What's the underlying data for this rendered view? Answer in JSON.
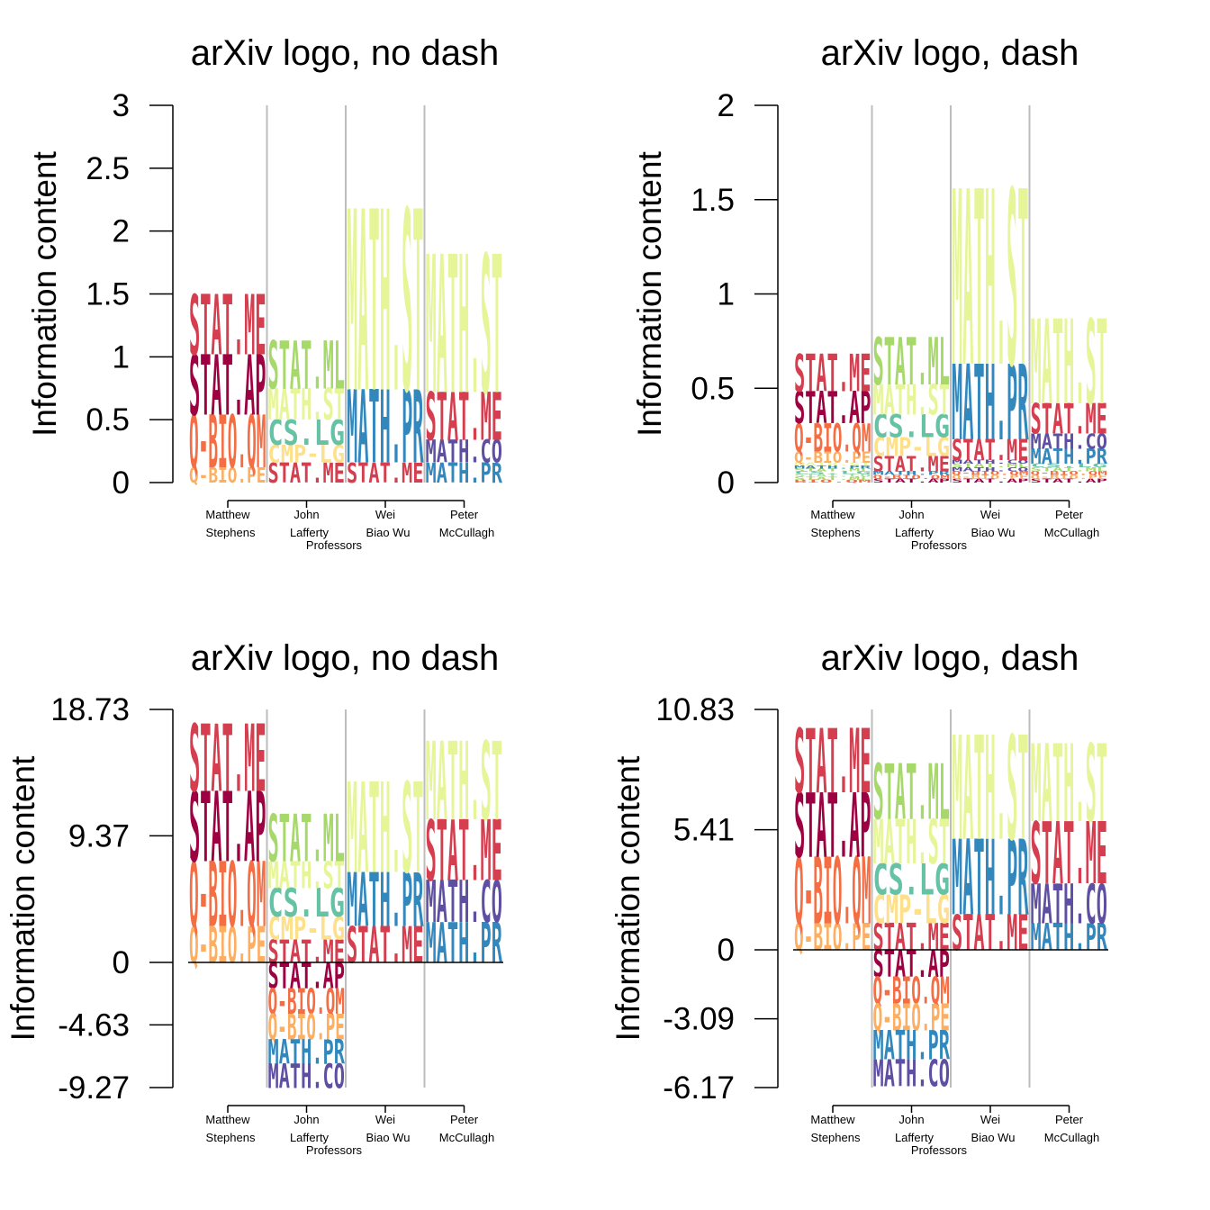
{
  "chart_data": [
    {
      "type": "stacked-logo",
      "title": "arXiv logo, no dash",
      "ylabel": "Information content",
      "xlabel": "Professors",
      "ylim": [
        0,
        3
      ],
      "yticks": [
        "0",
        "0.5",
        "1",
        "1.5",
        "2",
        "2.5",
        "3"
      ],
      "categories": [
        [
          "Matthew",
          "Stephens"
        ],
        [
          "John",
          "Lafferty"
        ],
        [
          "Wei",
          "Biao Wu"
        ],
        [
          "Peter",
          "McCullagh"
        ]
      ],
      "columns": [
        [
          {
            "label": "Q-BIO.PE",
            "value": 0.12
          },
          {
            "label": "Q-BIO.QM",
            "value": 0.42
          },
          {
            "label": "STAT.AP",
            "value": 0.48
          },
          {
            "label": "STAT.ME",
            "value": 0.48
          }
        ],
        [
          {
            "label": "STAT.ME",
            "value": 0.16
          },
          {
            "label": "CMP-LG",
            "value": 0.14
          },
          {
            "label": "CS.LG",
            "value": 0.2
          },
          {
            "label": "MATH.ST",
            "value": 0.25
          },
          {
            "label": "STAT.ML",
            "value": 0.38
          }
        ],
        [
          {
            "label": "STAT.ME",
            "value": 0.16
          },
          {
            "label": "MATH.PR",
            "value": 0.58
          },
          {
            "label": "MATH.ST",
            "value": 1.44
          }
        ],
        [
          {
            "label": "MATH.PR",
            "value": 0.16
          },
          {
            "label": "MATH.CO",
            "value": 0.18
          },
          {
            "label": "STAT.ME",
            "value": 0.38
          },
          {
            "label": "MATH.ST",
            "value": 1.1
          }
        ]
      ],
      "negative": []
    },
    {
      "type": "stacked-logo",
      "title": "arXiv logo, dash",
      "ylabel": "Information content",
      "xlabel": "Professors",
      "ylim": [
        0,
        2
      ],
      "yticks": [
        "0",
        "0.5",
        "1",
        "1.5",
        "2"
      ],
      "categories": [
        [
          "Matthew",
          "Stephens"
        ],
        [
          "John",
          "Lafferty"
        ],
        [
          "Wei",
          "Biao Wu"
        ],
        [
          "Peter",
          "McCullagh"
        ]
      ],
      "columns": [
        [
          {
            "label": "BIO.QM",
            "value": 0.015
          },
          {
            "label": "STAT.ML",
            "value": 0.015
          },
          {
            "label": "STAT.CO",
            "value": 0.015
          },
          {
            "label": "CS.LG",
            "value": 0.015
          },
          {
            "label": "STAT.ML",
            "value": 0.015
          },
          {
            "label": "MATH.PR",
            "value": 0.015
          },
          {
            "label": "MATH.ST",
            "value": 0.015
          },
          {
            "label": "Q-BIO.PE",
            "value": 0.06
          },
          {
            "label": "Q-BIO.QM",
            "value": 0.15
          },
          {
            "label": "STAT.AP",
            "value": 0.17
          },
          {
            "label": "STAT.ME",
            "value": 0.2
          }
        ],
        [
          {
            "label": "STAT.AP",
            "value": 0.02
          },
          {
            "label": "Q-BIO.QM",
            "value": 0.02
          },
          {
            "label": "MATH.PR",
            "value": 0.02
          },
          {
            "label": "STAT.ME",
            "value": 0.08
          },
          {
            "label": "CMP-LG",
            "value": 0.1
          },
          {
            "label": "CS.LG",
            "value": 0.12
          },
          {
            "label": "MATH.ST",
            "value": 0.16
          },
          {
            "label": "STAT.ML",
            "value": 0.25
          }
        ],
        [
          {
            "label": "STAT.AP",
            "value": 0.02
          },
          {
            "label": "Q-BIO.PE",
            "value": 0.02
          },
          {
            "label": "Q-BIO.QM",
            "value": 0.02
          },
          {
            "label": "MATH.CO",
            "value": 0.02
          },
          {
            "label": "STAT.ML",
            "value": 0.02
          },
          {
            "label": "MATH.CO",
            "value": 0.02
          },
          {
            "label": "STAT.ME",
            "value": 0.11
          },
          {
            "label": "MATH.PR",
            "value": 0.4
          },
          {
            "label": "MATH.ST",
            "value": 0.93
          }
        ],
        [
          {
            "label": "STAT.AP",
            "value": 0.02
          },
          {
            "label": "Q-BIO.PE",
            "value": 0.02
          },
          {
            "label": "Q-BIO.QM",
            "value": 0.02
          },
          {
            "label": "STAT.ML",
            "value": 0.02
          },
          {
            "label": "CS.LG",
            "value": 0.02
          },
          {
            "label": "MATH.PR",
            "value": 0.08
          },
          {
            "label": "MATH.CO",
            "value": 0.08
          },
          {
            "label": "STAT.ME",
            "value": 0.16
          },
          {
            "label": "MATH.ST",
            "value": 0.45
          }
        ]
      ],
      "negative": []
    },
    {
      "type": "stacked-logo",
      "title": "arXiv logo, no dash",
      "ylabel": "Information content",
      "xlabel": "Professors",
      "ylim": [
        -9.27,
        18.73
      ],
      "yticks": [
        "-9.27",
        "-4.63",
        "0",
        "9.37",
        "18.73"
      ],
      "ytick_values": [
        -9.27,
        -4.63,
        0,
        9.37,
        18.73
      ],
      "categories": [
        [
          "Matthew",
          "Stephens"
        ],
        [
          "John",
          "Lafferty"
        ],
        [
          "Wei",
          "Biao Wu"
        ],
        [
          "Peter",
          "McCullagh"
        ]
      ],
      "columns": [
        [
          {
            "label": "Q-BIO.PE",
            "value": 2.7
          },
          {
            "label": "Q-BIO.QM",
            "value": 4.8
          },
          {
            "label": "STAT.AP",
            "value": 5.2
          },
          {
            "label": "STAT.ME",
            "value": 5.0
          }
        ],
        [
          {
            "label": "STAT.ME",
            "value": 1.7
          },
          {
            "label": "CMP-LG",
            "value": 1.7
          },
          {
            "label": "CS.LG",
            "value": 2.1
          },
          {
            "label": "MATH.ST",
            "value": 2.0
          },
          {
            "label": "STAT.ML",
            "value": 3.5
          }
        ],
        [
          {
            "label": "STAT.ME",
            "value": 2.7
          },
          {
            "label": "MATH.PR",
            "value": 4.0
          },
          {
            "label": "MATH.ST",
            "value": 6.7
          }
        ],
        [
          {
            "label": "MATH.PR",
            "value": 3.0
          },
          {
            "label": "MATH.CO",
            "value": 3.1
          },
          {
            "label": "STAT.ME",
            "value": 4.5
          },
          {
            "label": "MATH.ST",
            "value": 5.8
          }
        ]
      ],
      "negative": [
        [],
        [
          {
            "label": "STAT.AP",
            "value": 1.9
          },
          {
            "label": "Q-BIO.QM",
            "value": 1.9
          },
          {
            "label": "Q-BIO.PE",
            "value": 1.9
          },
          {
            "label": "MATH.PR",
            "value": 1.8
          },
          {
            "label": "MATH.CO",
            "value": 1.8
          }
        ],
        [],
        []
      ]
    },
    {
      "type": "stacked-logo",
      "title": "arXiv logo, dash",
      "ylabel": "Information content",
      "xlabel": "Professors",
      "ylim": [
        -6.17,
        10.83
      ],
      "yticks": [
        "-6.17",
        "-3.09",
        "0",
        "5.41",
        "10.83"
      ],
      "ytick_values": [
        -6.17,
        -3.09,
        0,
        5.41,
        10.83
      ],
      "categories": [
        [
          "Matthew",
          "Stephens"
        ],
        [
          "John",
          "Lafferty"
        ],
        [
          "Wei",
          "Biao Wu"
        ],
        [
          "Peter",
          "McCullagh"
        ]
      ],
      "columns": [
        [
          {
            "label": "Q-BIO.PE",
            "value": 1.2
          },
          {
            "label": "Q-BIO.QM",
            "value": 3.0
          },
          {
            "label": "STAT.AP",
            "value": 2.9
          },
          {
            "label": "STAT.ME",
            "value": 2.9
          }
        ],
        [
          {
            "label": "STAT.ME",
            "value": 1.2
          },
          {
            "label": "CMP-LG",
            "value": 1.3
          },
          {
            "label": "CS.LG",
            "value": 1.4
          },
          {
            "label": "MATH.ST",
            "value": 2.0
          },
          {
            "label": "STAT.ML",
            "value": 2.5
          }
        ],
        [
          {
            "label": "STAT.ME",
            "value": 1.6
          },
          {
            "label": "MATH.PR",
            "value": 3.4
          },
          {
            "label": "MATH.ST",
            "value": 4.7
          }
        ],
        [
          {
            "label": "MATH.PR",
            "value": 1.2
          },
          {
            "label": "MATH.CO",
            "value": 1.8
          },
          {
            "label": "STAT.ME",
            "value": 2.8
          },
          {
            "label": "MATH.ST",
            "value": 3.5
          }
        ]
      ],
      "negative": [
        [],
        [
          {
            "label": "STAT.AP",
            "value": 1.2
          },
          {
            "label": "Q-BIO.QM",
            "value": 1.2
          },
          {
            "label": "Q-BIO.PE",
            "value": 1.2
          },
          {
            "label": "MATH.PR",
            "value": 1.3
          },
          {
            "label": "MATH.CO",
            "value": 1.2
          }
        ],
        [],
        []
      ]
    }
  ],
  "colors": {
    "STAT.ME": "#d53e4f",
    "STAT.AP": "#9e0142",
    "Q-BIO.QM": "#f46d43",
    "Q-BIO.PE": "#fdae61",
    "STAT.ML": "#a6d96a",
    "MATH.ST": "#e6f598",
    "CS.LG": "#66c2a5",
    "CMP-LG": "#fee08b",
    "MATH.PR": "#3288bd",
    "MATH.CO": "#5e4fa2",
    "BIO.QM": "#f46d43",
    "STAT.CO": "#abdda4"
  }
}
